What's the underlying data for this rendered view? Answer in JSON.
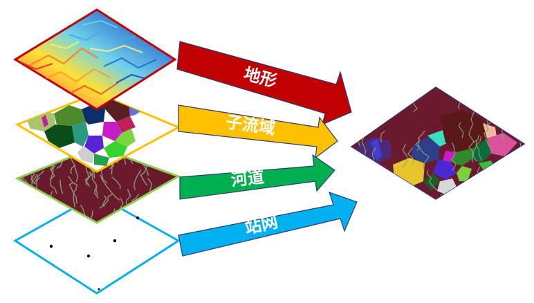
{
  "arrows": [
    {
      "label": "地形",
      "color": "#c00000"
    },
    {
      "label": "子流域",
      "color": "#ffc000"
    },
    {
      "label": "河道",
      "color": "#00b050"
    },
    {
      "label": "站网",
      "color": "#00b0f0"
    }
  ],
  "layers": [
    {
      "name": "terrain-layer",
      "border_color": "#c00000"
    },
    {
      "name": "subbasin-layer",
      "border_color": "#ffc000"
    },
    {
      "name": "river-layer",
      "border_color": "#92d050"
    },
    {
      "name": "station-layer",
      "border_color": "#00b0f0"
    }
  ],
  "colors": {
    "river_background": "#6b1a2e",
    "river_lines": "#8aa47a",
    "composite_border": "#3a2f6b"
  }
}
